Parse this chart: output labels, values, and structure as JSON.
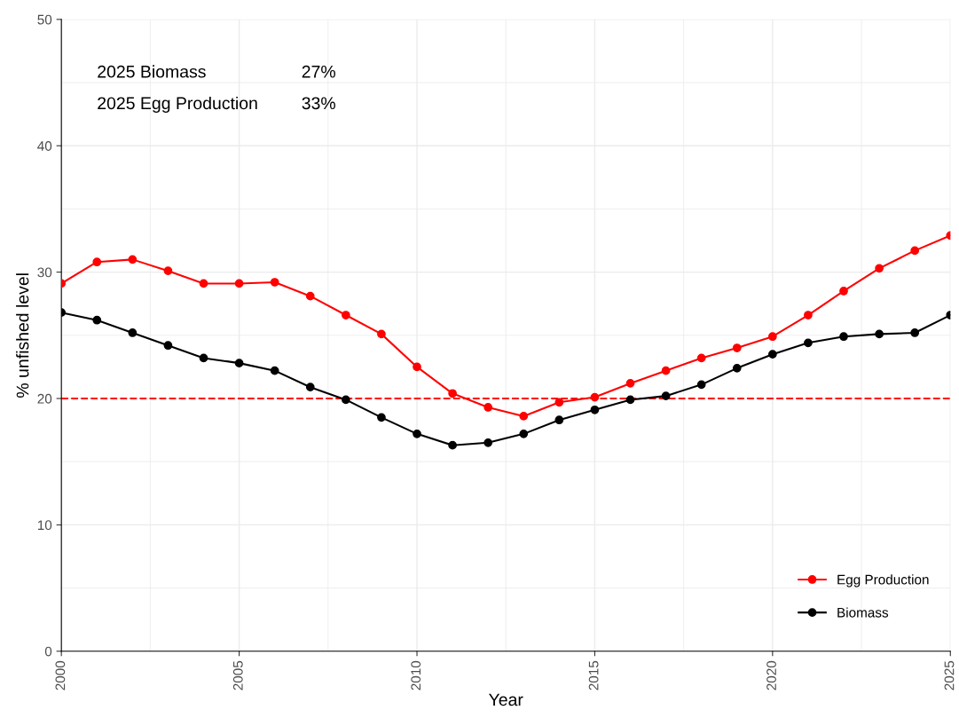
{
  "chart_data": {
    "type": "line",
    "xlabel": "Year",
    "ylabel": "% unfished level",
    "x": [
      2000,
      2001,
      2002,
      2003,
      2004,
      2005,
      2006,
      2007,
      2008,
      2009,
      2010,
      2011,
      2012,
      2013,
      2014,
      2015,
      2016,
      2017,
      2018,
      2019,
      2020,
      2021,
      2022,
      2023,
      2024,
      2025
    ],
    "series": [
      {
        "name": "Egg Production",
        "color": "#ff0000",
        "values": [
          29.1,
          30.8,
          31.0,
          30.1,
          29.1,
          29.1,
          29.2,
          28.1,
          26.6,
          25.1,
          22.5,
          20.4,
          19.3,
          18.6,
          19.7,
          20.1,
          21.2,
          22.2,
          23.2,
          24.0,
          24.9,
          26.6,
          28.5,
          30.3,
          31.7,
          32.9
        ]
      },
      {
        "name": "Biomass",
        "color": "#000000",
        "values": [
          26.8,
          26.2,
          25.2,
          24.2,
          23.2,
          22.8,
          22.2,
          20.9,
          19.9,
          18.5,
          17.2,
          16.3,
          16.5,
          17.2,
          18.3,
          19.1,
          19.9,
          20.2,
          21.1,
          22.4,
          23.5,
          24.4,
          24.9,
          25.1,
          25.2,
          26.6
        ]
      }
    ],
    "xlim": [
      2000,
      2025
    ],
    "xticks": [
      2000,
      2005,
      2010,
      2015,
      2020,
      2025
    ],
    "ylim": [
      0,
      50
    ],
    "yticks": [
      0,
      10,
      20,
      30,
      40,
      50
    ],
    "ref_lines": [
      {
        "axis": "y",
        "value": 20,
        "color": "#ff0000",
        "line_style": "dashed"
      }
    ],
    "annotations": [
      "2025 Biomass",
      "27%",
      "2025 Egg Production",
      "33%"
    ],
    "grid": true,
    "legend": "bottom right",
    "marker": "circle",
    "line_style": "solid"
  }
}
